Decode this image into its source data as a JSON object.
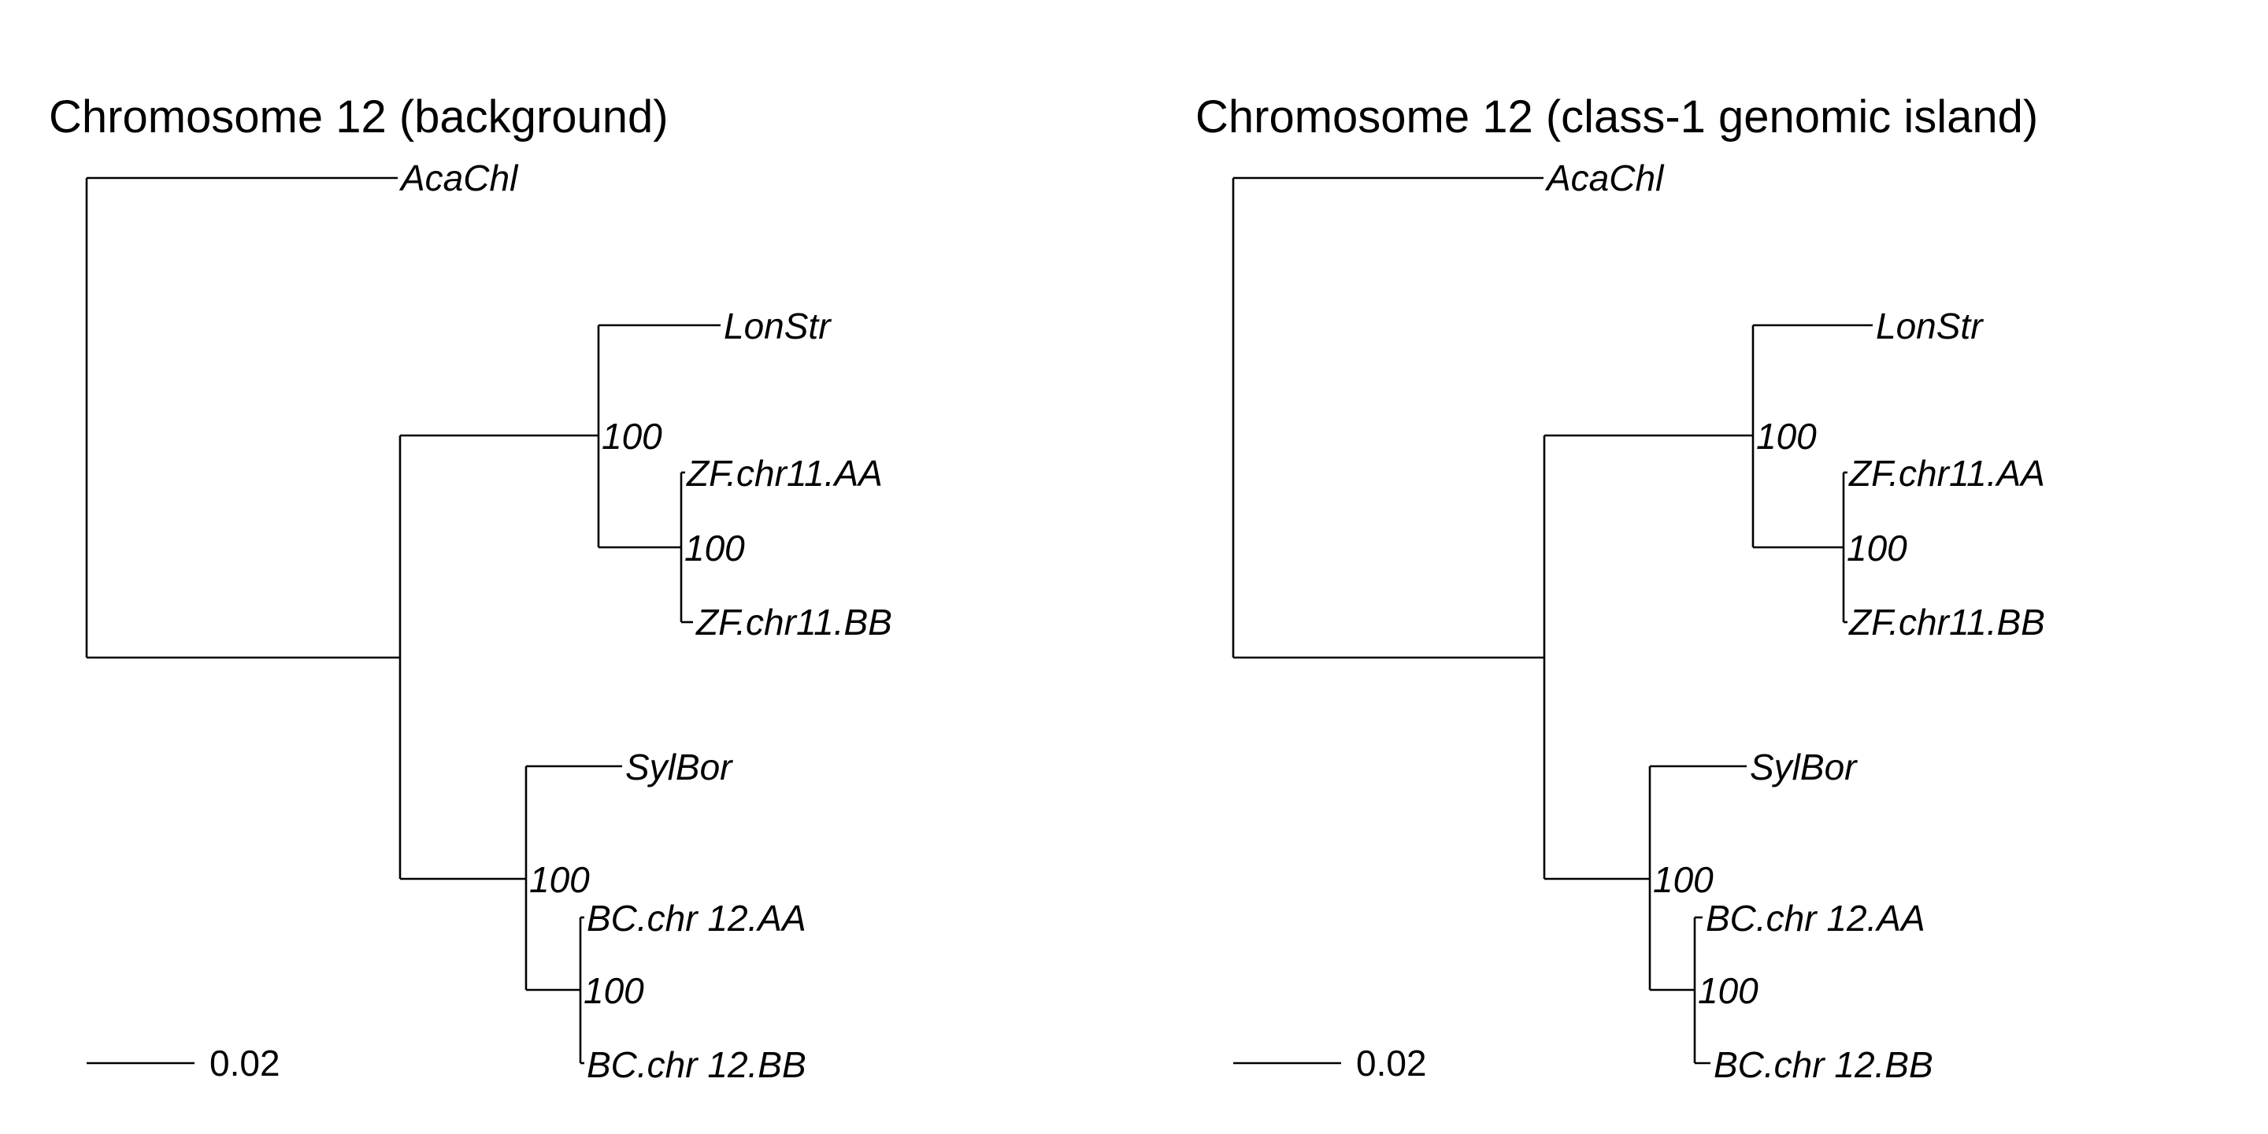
{
  "trees": [
    {
      "title": "Chromosome 12 (background)",
      "tips": [
        "AcaChl",
        "LonStr",
        "ZF.chr11.AA",
        "ZF.chr11.BB",
        "SylBor",
        "BC.chr 12.AA",
        "BC.chr 12.BB"
      ],
      "support": [
        "100",
        "100",
        "100",
        "100"
      ],
      "scale_bar_label": "0.02",
      "scale_bar_length": 0.02
    },
    {
      "title": "Chromosome 12 (class-1 genomic island)",
      "tips": [
        "AcaChl",
        "LonStr",
        "ZF.chr11.AA",
        "ZF.chr11.BB",
        "SylBor",
        "BC.chr 12.AA",
        "BC.chr 12.BB"
      ],
      "support": [
        "100",
        "100",
        "100",
        "100"
      ],
      "scale_bar_label": "0.02",
      "scale_bar_length": 0.02
    }
  ],
  "colors": {
    "branch": "#000000",
    "text": "#000000",
    "background": "#ffffff"
  }
}
